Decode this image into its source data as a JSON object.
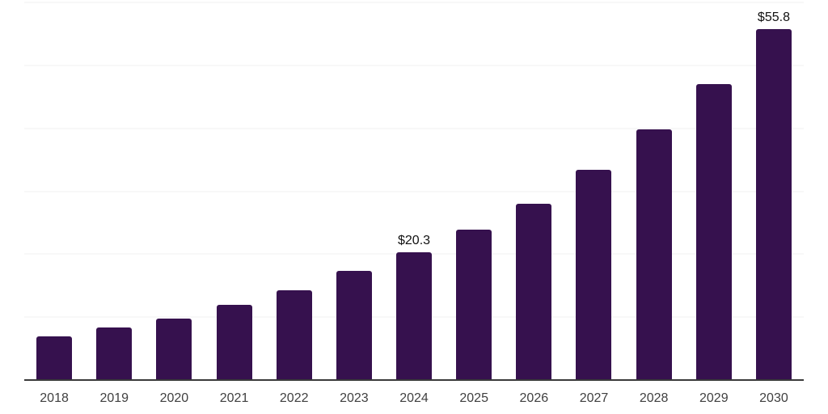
{
  "chart": {
    "colors": {
      "background": "#ffffff",
      "bar": "#36114e",
      "gridline": "#f2f2f2",
      "axis": "#3a3a3a",
      "data_label": "#111111",
      "tick_label": "#404040"
    }
  },
  "chart_data": {
    "type": "bar",
    "title": "",
    "xlabel": "",
    "ylabel": "",
    "categories": [
      "2018",
      "2019",
      "2020",
      "2021",
      "2022",
      "2023",
      "2024",
      "2025",
      "2026",
      "2027",
      "2028",
      "2029",
      "2030"
    ],
    "values": [
      7.0,
      8.4,
      9.8,
      11.9,
      14.3,
      17.3,
      20.3,
      23.9,
      28.0,
      33.4,
      39.8,
      47.0,
      55.8
    ],
    "data_labels": {
      "2024": "$20.3",
      "2030": "$55.8"
    },
    "ylim": [
      0,
      60
    ],
    "grid_step": 10,
    "grid": "horizontal-only",
    "y_tick_labels": "none",
    "legend": "none",
    "bar_corner_radius": "rounded-top"
  }
}
